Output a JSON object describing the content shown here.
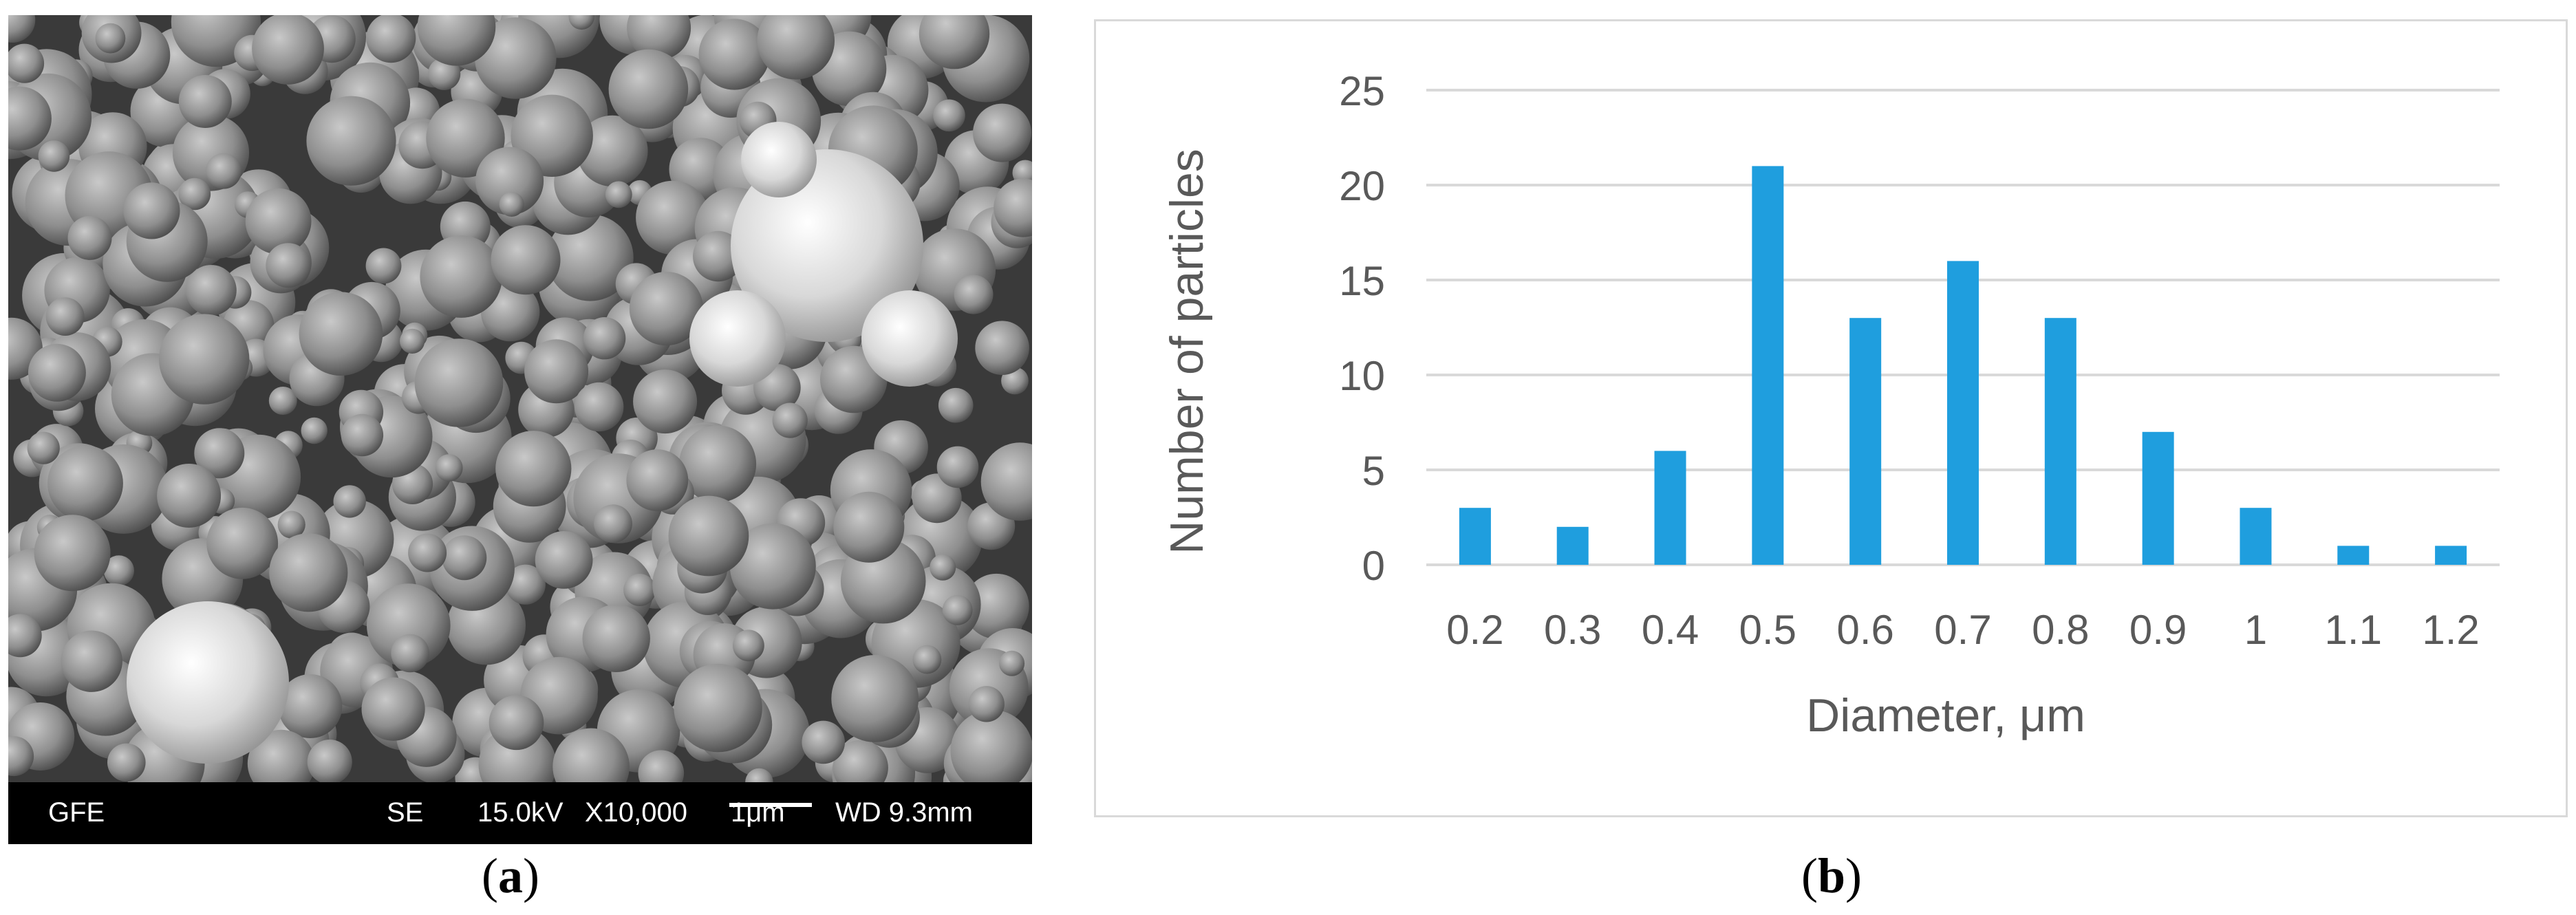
{
  "sem": {
    "label_sample": "GFE",
    "label_mode": "SE",
    "label_voltage": "15.0kV",
    "label_magnification": "X10,000",
    "label_scale": "1μm",
    "label_wd": "WD 9.3mm"
  },
  "captions": {
    "a_open": "(",
    "a_letter": "a",
    "a_close": ")",
    "b_open": "(",
    "b_letter": "b",
    "b_close": ")"
  },
  "colors": {
    "bar": "#1f9ede",
    "grid": "#d9d9d9",
    "axis_text": "#595959"
  },
  "chart_data": {
    "type": "bar",
    "title": "",
    "xlabel": "Diameter, μm",
    "ylabel": "Number of particles",
    "categories": [
      "0.2",
      "0.3",
      "0.4",
      "0.5",
      "0.6",
      "0.7",
      "0.8",
      "0.9",
      "1",
      "1.1",
      "1.2"
    ],
    "values": [
      3,
      2,
      6,
      21,
      13,
      16,
      13,
      7,
      3,
      1,
      1
    ],
    "ylim": [
      0,
      25
    ],
    "yticks": [
      0,
      5,
      10,
      15,
      20,
      25
    ],
    "grid": true,
    "legend": "none"
  }
}
